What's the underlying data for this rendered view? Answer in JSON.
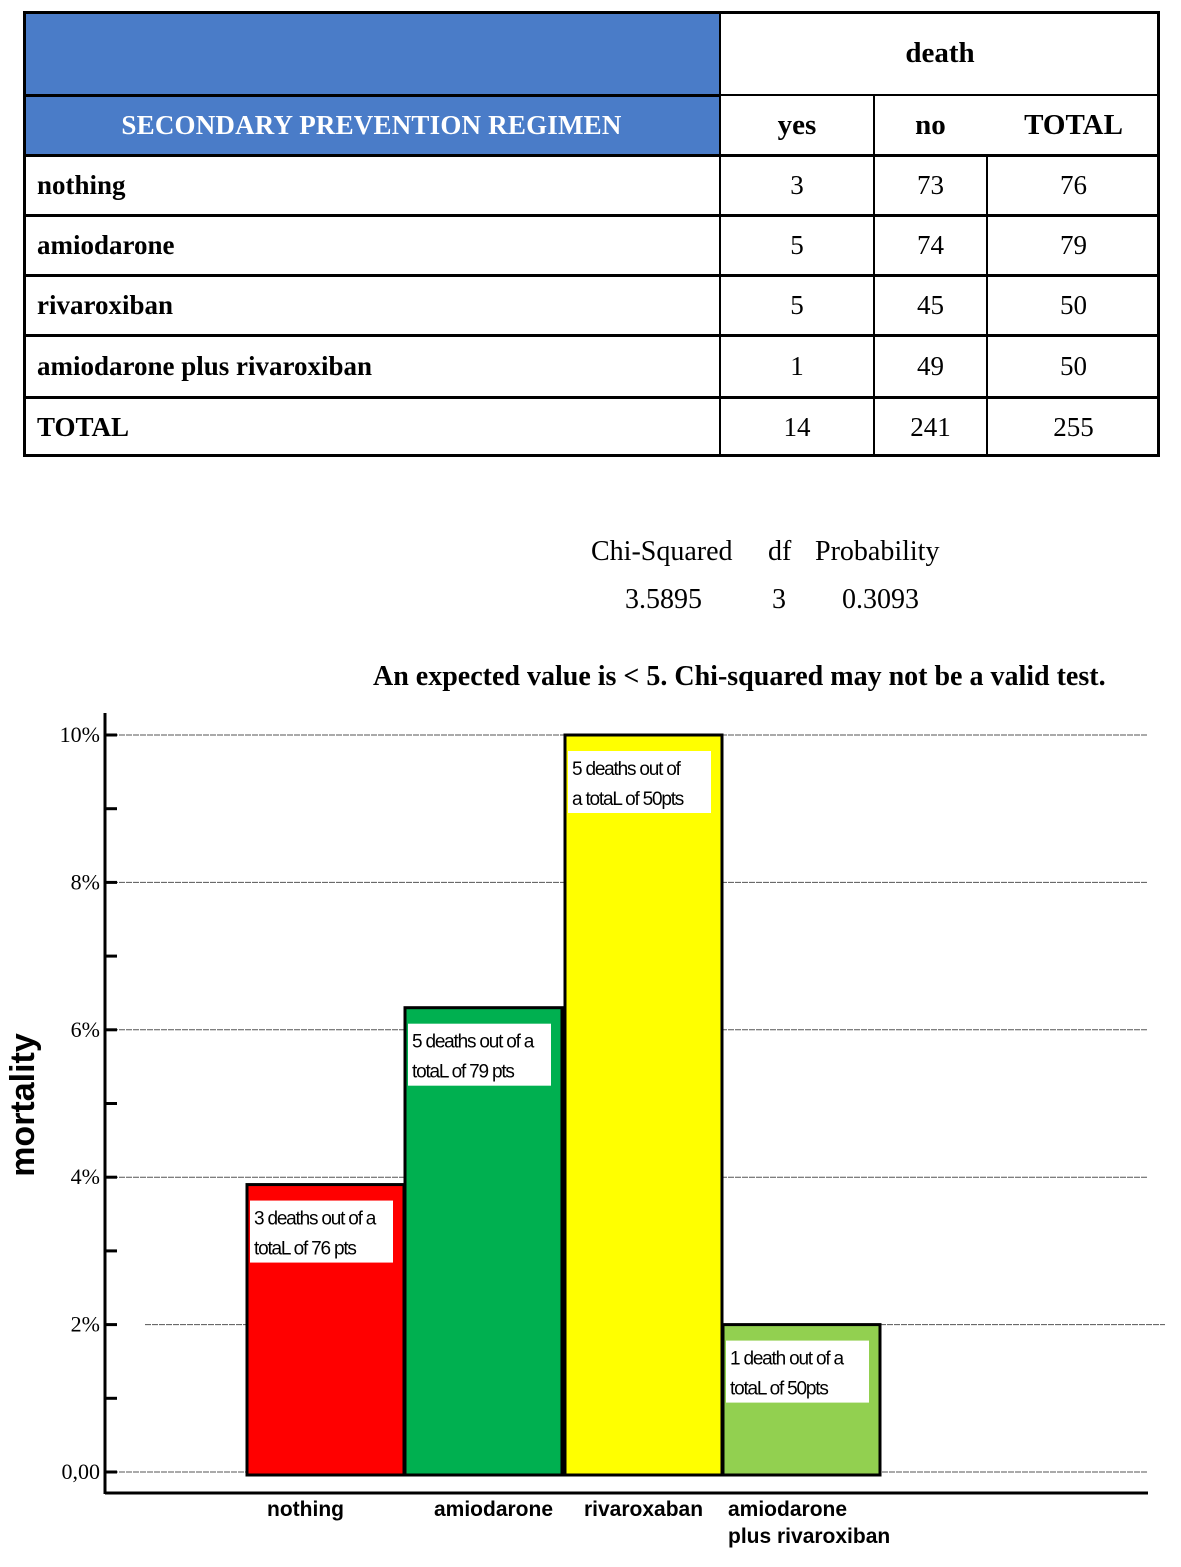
{
  "table": {
    "group_header": "death",
    "row_header": "SECONDARY PREVENTION REGIMEN",
    "columns": [
      "yes",
      "no",
      "TOTAL"
    ],
    "rows": [
      {
        "label": "nothing",
        "yes": "3",
        "no": "73",
        "total": "76"
      },
      {
        "label": "amiodarone",
        "yes": "5",
        "no": "74",
        "total": "79"
      },
      {
        "label": "rivaroxiban",
        "yes": "5",
        "no": "45",
        "total": "50"
      },
      {
        "label": "amiodarone plus rivaroxiban",
        "yes": "1",
        "no": "49",
        "total": "50"
      },
      {
        "label": "TOTAL",
        "yes": "14",
        "no": "241",
        "total": "255"
      }
    ]
  },
  "stats": {
    "headers": [
      "Chi-Squared",
      "df",
      "Probability"
    ],
    "values": [
      "3.5895",
      "3",
      "0.3093"
    ],
    "warning": "An expected value is < 5. Chi-squared may not be a valid test."
  },
  "chart_data": {
    "type": "bar",
    "categories": [
      "nothing",
      "amiodarone",
      "rivaroxaban",
      "amiodarone plus rivaroxiban"
    ],
    "category_lines": [
      [
        "nothing"
      ],
      [
        "amiodarone"
      ],
      [
        "rivaroxaban"
      ],
      [
        "amiodarone",
        "plus rivaroxiban"
      ]
    ],
    "values": [
      3.9,
      6.3,
      10.0,
      2.0
    ],
    "colors": [
      "#ff0000",
      "#00b050",
      "#ffff00",
      "#92d050"
    ],
    "annotations": [
      [
        "3 deaths out of a",
        "totaL of 76 pts"
      ],
      [
        "5 deaths out of a",
        "totaL of 79 pts"
      ],
      [
        "5 deaths out of",
        "a totaL of 50pts"
      ],
      [
        "1 death out of a",
        "totaL of 50pts"
      ]
    ],
    "ylabel": "mortality",
    "xlabel": "",
    "ylim": [
      0,
      10
    ],
    "yticks": [
      0,
      2,
      4,
      6,
      8,
      10
    ],
    "ytick_labels": [
      "0,00",
      "2%",
      "4%",
      "6%",
      "8%",
      "10%"
    ],
    "grid": true
  }
}
